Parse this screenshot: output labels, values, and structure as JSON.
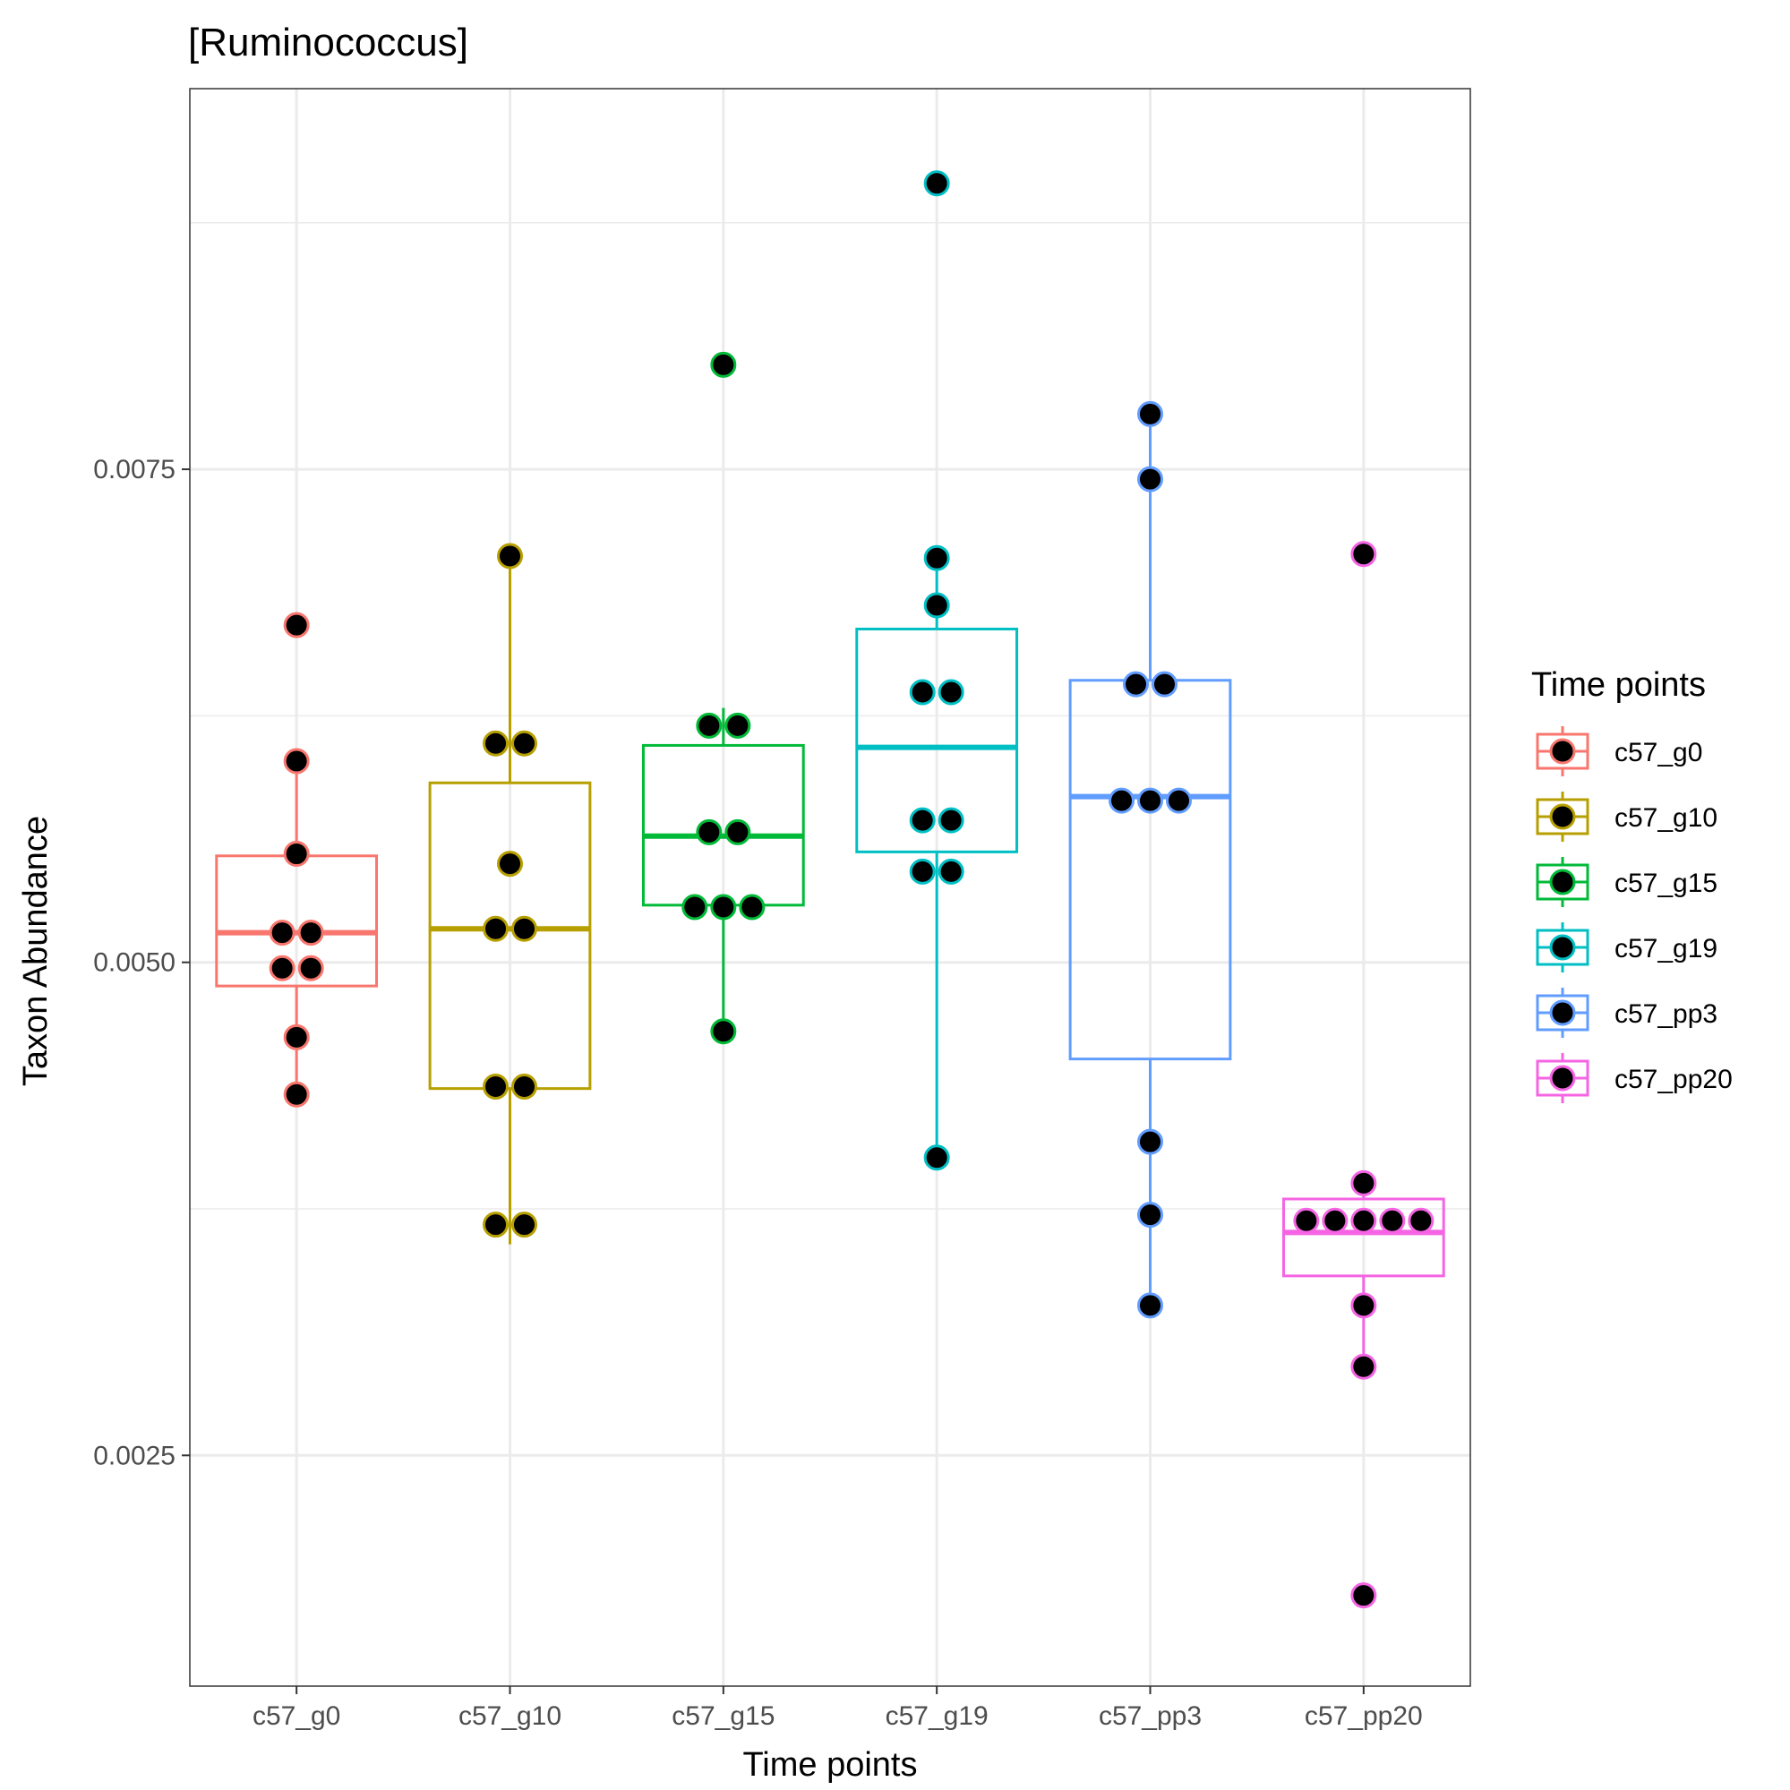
{
  "chart_data": {
    "type": "box",
    "title": "[Ruminococcus]",
    "xlabel": "Time points",
    "ylabel": "Taxon Abundance",
    "categories": [
      "c57_g0",
      "c57_g10",
      "c57_g15",
      "c57_g19",
      "c57_pp3",
      "c57_pp20"
    ],
    "ylim": [
      0.00133,
      0.00943
    ],
    "yticks": [
      0.0025,
      0.005,
      0.0075
    ],
    "ytick_labels": [
      "0.0025",
      "0.0050",
      "0.0075"
    ],
    "grid": true,
    "legend": {
      "title": "Time points",
      "position": "right",
      "entries": [
        "c57_g0",
        "c57_g10",
        "c57_g15",
        "c57_g19",
        "c57_pp3",
        "c57_pp20"
      ]
    },
    "colors": [
      "#F8766D",
      "#B79F00",
      "#00BA38",
      "#00BFC4",
      "#619CFF",
      "#F564E3"
    ],
    "point_fill": "#000000",
    "series": [
      {
        "name": "c57_g0",
        "box": {
          "min": 0.00433,
          "q1": 0.00488,
          "median": 0.00515,
          "q3": 0.00554,
          "max": 0.00602
        },
        "points": [
          0.00433,
          0.00462,
          0.00497,
          0.00497,
          0.00515,
          0.00515,
          0.00555,
          0.00602,
          0.00671
        ]
      },
      {
        "name": "c57_g10",
        "box": {
          "min": 0.00357,
          "q1": 0.00436,
          "median": 0.00517,
          "q3": 0.00591,
          "max": 0.00706
        },
        "points": [
          0.00367,
          0.00367,
          0.00437,
          0.00437,
          0.00517,
          0.00517,
          0.0055,
          0.00611,
          0.00611,
          0.00706
        ]
      },
      {
        "name": "c57_g15",
        "box": {
          "min": 0.00465,
          "q1": 0.00529,
          "median": 0.00564,
          "q3": 0.0061,
          "max": 0.00629
        },
        "points": [
          0.00465,
          0.00528,
          0.00528,
          0.00528,
          0.00566,
          0.00566,
          0.0062,
          0.0062,
          0.00803
        ]
      },
      {
        "name": "c57_g19",
        "box": {
          "min": 0.00401,
          "q1": 0.00556,
          "median": 0.00609,
          "q3": 0.00669,
          "max": 0.00706
        },
        "points": [
          0.00401,
          0.00546,
          0.00546,
          0.00572,
          0.00572,
          0.00637,
          0.00637,
          0.00681,
          0.00705,
          0.00895
        ]
      },
      {
        "name": "c57_pp3",
        "box": {
          "min": 0.00326,
          "q1": 0.00451,
          "median": 0.00584,
          "q3": 0.00643,
          "max": 0.00778
        },
        "points": [
          0.00326,
          0.00372,
          0.00409,
          0.00582,
          0.00582,
          0.00582,
          0.00641,
          0.00641,
          0.00745,
          0.00778
        ]
      },
      {
        "name": "c57_pp20",
        "box": {
          "min": 0.00295,
          "q1": 0.00341,
          "median": 0.00363,
          "q3": 0.0038,
          "max": 0.00388
        },
        "points": [
          0.00179,
          0.00295,
          0.00326,
          0.00369,
          0.00369,
          0.00369,
          0.00369,
          0.00369,
          0.00388,
          0.00707
        ]
      }
    ]
  }
}
